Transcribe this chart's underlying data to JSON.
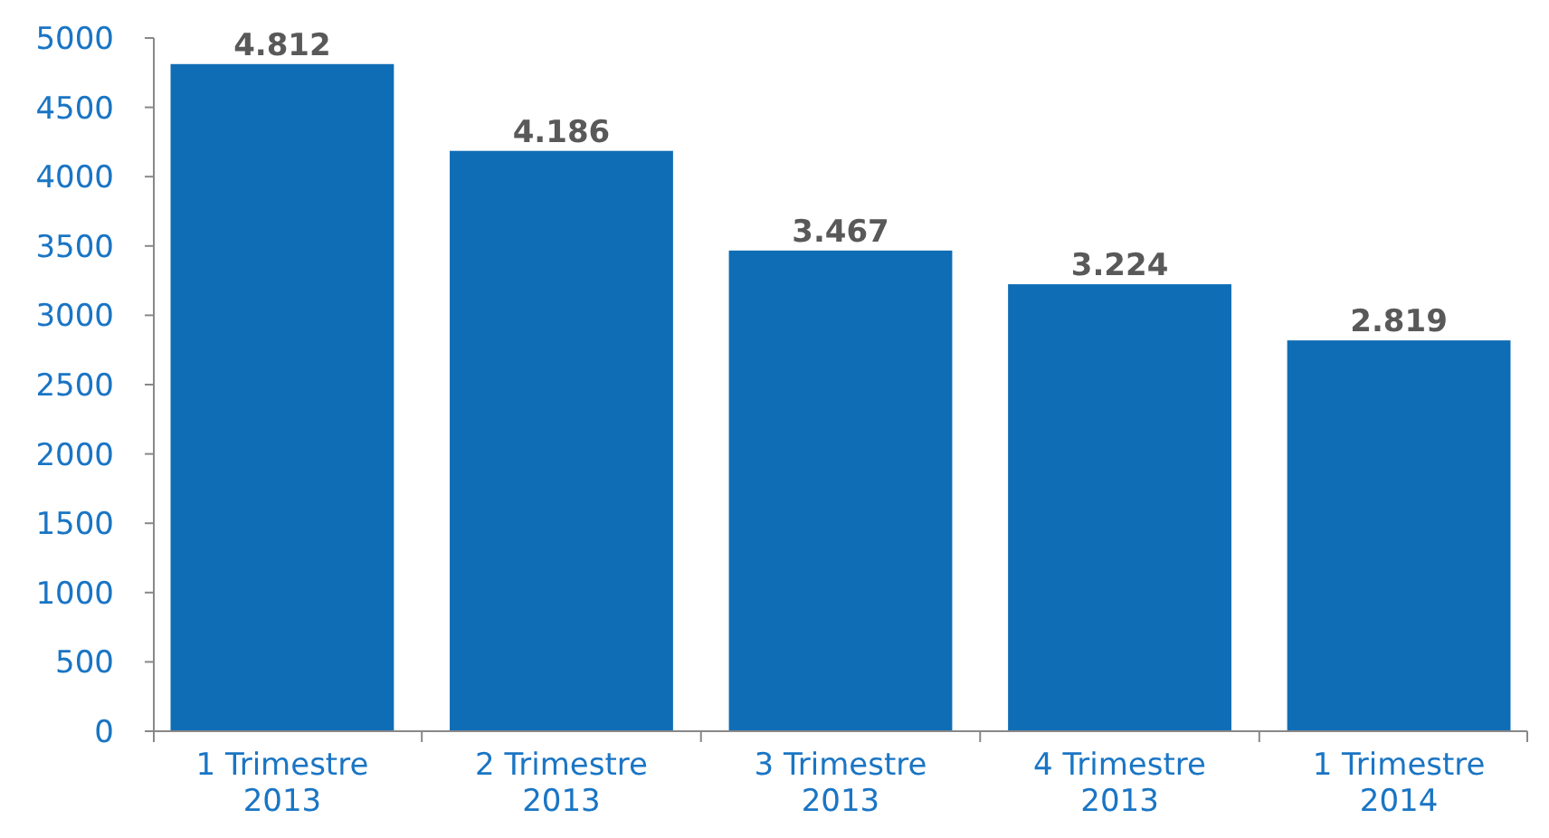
{
  "chart_data": {
    "type": "bar",
    "categories": [
      "1 Trimestre 2013",
      "2 Trimestre 2013",
      "3 Trimestre 2013",
      "4 Trimestre 2013",
      "1 Trimestre 2014"
    ],
    "values": [
      4812,
      4186,
      3467,
      3224,
      2819
    ],
    "value_labels": [
      "4.812",
      "4.186",
      "3.467",
      "3.224",
      "2.819"
    ],
    "color": "#0f6db5",
    "ylim": [
      0,
      5000
    ],
    "yticks": [
      0,
      500,
      1000,
      1500,
      2000,
      2500,
      3000,
      3500,
      4000,
      4500,
      5000
    ],
    "grid": false
  }
}
